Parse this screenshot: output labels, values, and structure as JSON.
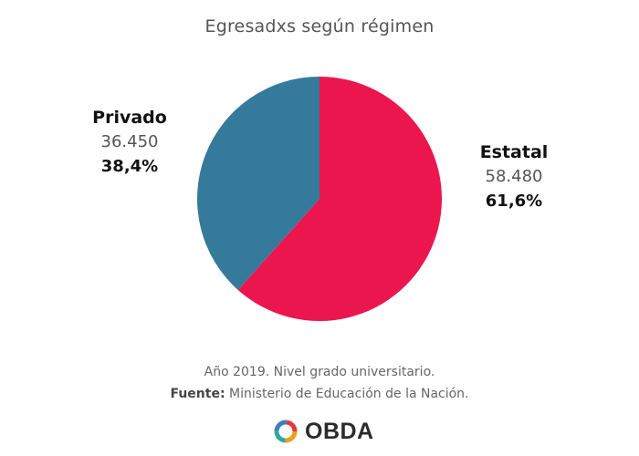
{
  "title": "Egresadxs según régimen",
  "chart_data": {
    "type": "pie",
    "title": "Egresadxs según régimen",
    "slices": [
      {
        "name": "Estatal",
        "value": 58480,
        "value_label": "58.480",
        "percent": 61.6,
        "percent_label": "61,6%",
        "color": "#ec164f"
      },
      {
        "name": "Privado",
        "value": 36450,
        "value_label": "36.450",
        "percent": 38.4,
        "percent_label": "38,4%",
        "color": "#35799b"
      }
    ]
  },
  "notes": {
    "year": "Año 2019. Nivel grado universitario.",
    "source_label": "Fuente:",
    "source_text": "Ministerio de Educación de la Nación."
  },
  "logo": {
    "text": "OBDA",
    "icon": "obda-logo-icon"
  }
}
